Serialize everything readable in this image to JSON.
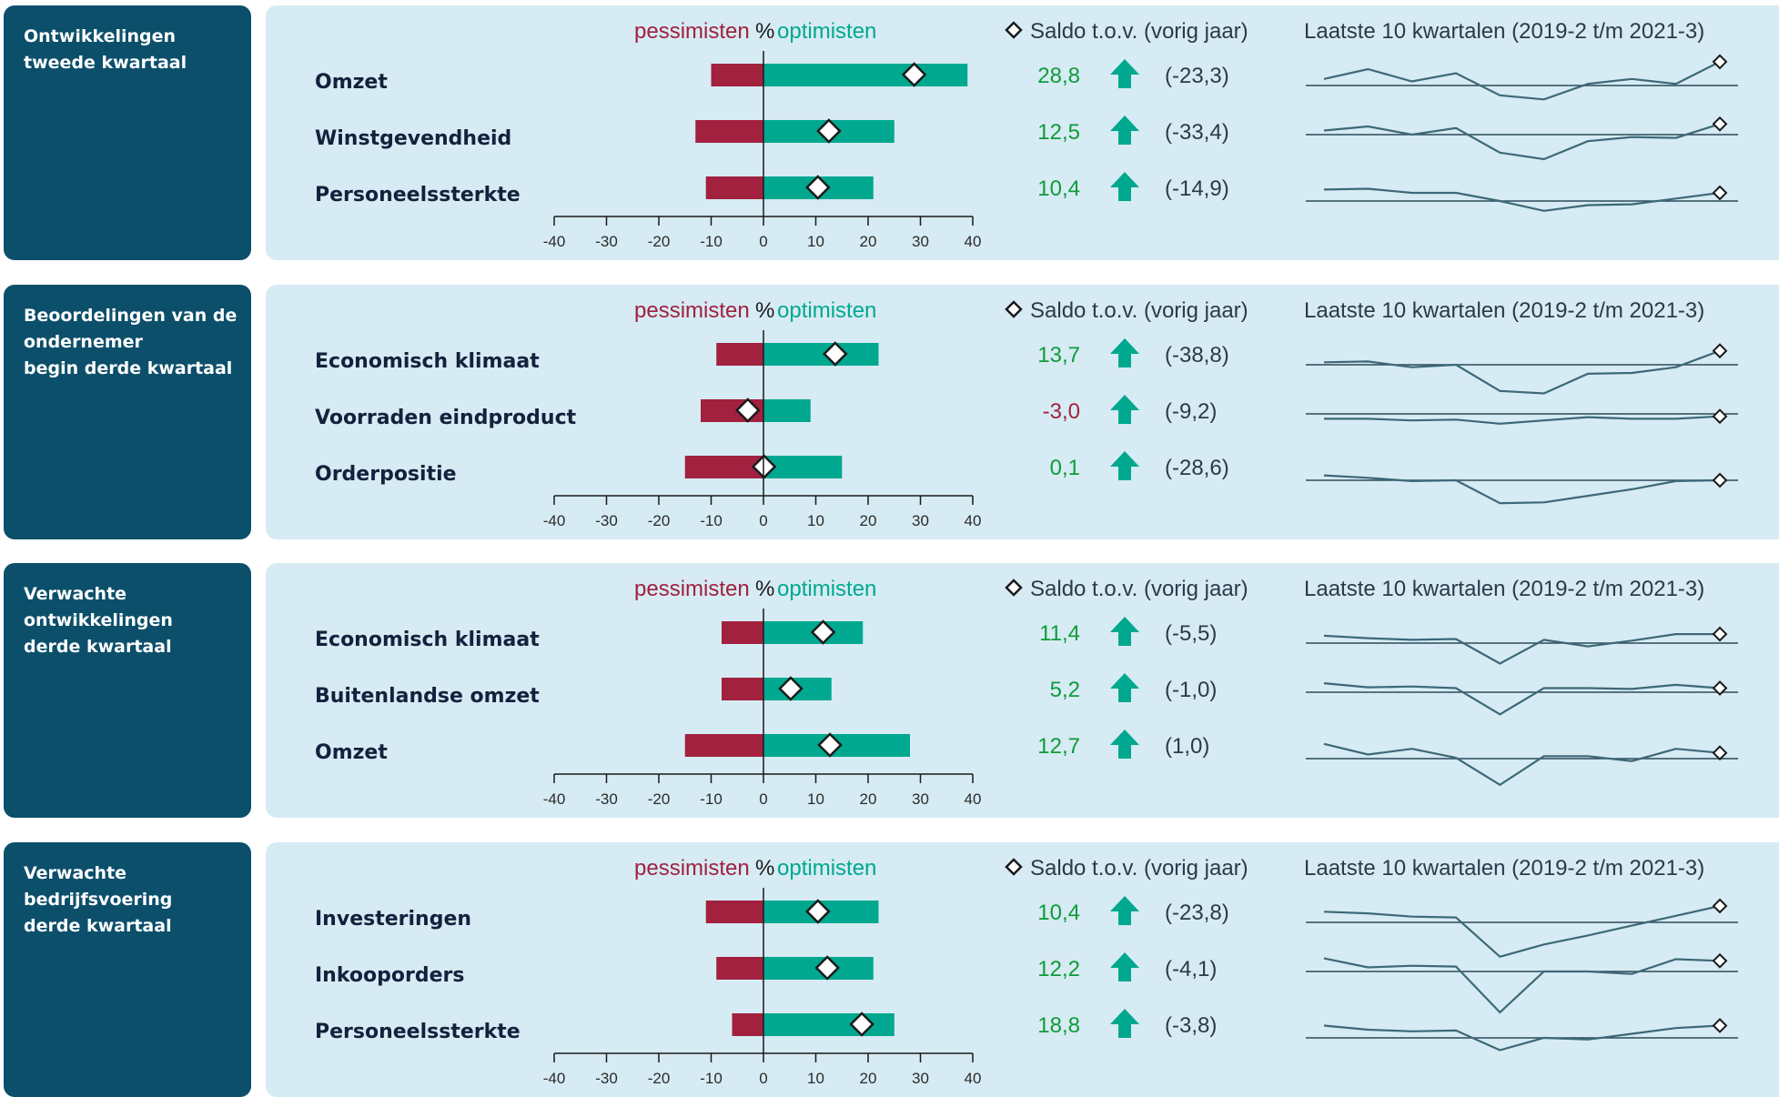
{
  "colors": {
    "pessimist": "#a1213f",
    "optimist": "#00a88f",
    "positive_text": "#0f9b3a",
    "negative_text": "#a1213f",
    "arrow": "#00a88f",
    "sparkline": "#3d6878",
    "panel_bg": "#d6ebf3",
    "side_bg": "#0c4f6b",
    "axis": "#1a1a1a"
  },
  "legend": {
    "pessimists": "pessimisten",
    "percent": "%",
    "optimists": "optimisten",
    "saldo_label": "Saldo t.o.v. (vorig jaar)",
    "trend_label": "Laatste 10 kwartalen (2019-2 t/m 2021-3)"
  },
  "axis": {
    "ticks": [
      "-40",
      "-30",
      "-20",
      "-10",
      "0",
      "10",
      "20",
      "30",
      "40"
    ]
  },
  "chart_data": [
    {
      "type": "bar",
      "title": "Ontwikkelingen\ntweede kwartaal",
      "xlim": [
        -40,
        40
      ],
      "categories": [
        "Omzet",
        "Winstgevendheid",
        "Personeelssterkte"
      ],
      "pessimists": [
        -10,
        -13,
        -11
      ],
      "optimists": [
        39,
        25,
        21
      ],
      "saldo": [
        "28,8",
        "12,5",
        "10,4"
      ],
      "saldo_values": [
        28.8,
        12.5,
        10.4
      ],
      "change": [
        "(-23,3)",
        "(-33,4)",
        "(-14,9)"
      ],
      "trend": [
        [
          8,
          20,
          5,
          15,
          -12,
          -17,
          2,
          8,
          2,
          29
        ],
        [
          5,
          10,
          0,
          8,
          -22,
          -30,
          -8,
          -3,
          -4,
          13
        ],
        [
          14,
          15,
          10,
          10,
          0,
          -12,
          -5,
          -4,
          3,
          10
        ]
      ]
    },
    {
      "type": "bar",
      "title": "Beoordelingen van de\nondernemer\nbegin derde kwartaal",
      "xlim": [
        -40,
        40
      ],
      "categories": [
        "Economisch klimaat",
        "Voorraden eindproduct",
        "Orderpositie"
      ],
      "pessimists": [
        -9,
        -12,
        -15
      ],
      "optimists": [
        22,
        9,
        15
      ],
      "saldo": [
        "13,7",
        "-3,0",
        "0,1"
      ],
      "saldo_values": [
        13.7,
        -3.0,
        0.1
      ],
      "change": [
        "(-38,8)",
        "(-9,2)",
        "(-28,6)"
      ],
      "trend": [
        [
          3,
          4,
          -3,
          0,
          -32,
          -35,
          -11,
          -10,
          -3,
          17
        ],
        [
          -6,
          -6,
          -8,
          -7,
          -12,
          -8,
          -4,
          -6,
          -6,
          -3
        ],
        [
          6,
          3,
          -1,
          0,
          -28,
          -27,
          -19,
          -11,
          -1,
          0
        ]
      ]
    },
    {
      "type": "bar",
      "title": "Verwachte\nontwikkelingen\nderde kwartaal",
      "xlim": [
        -40,
        40
      ],
      "categories": [
        "Economisch klimaat",
        "Buitenlandse omzet",
        "Omzet"
      ],
      "pessimists": [
        -8,
        -8,
        -15
      ],
      "optimists": [
        19,
        13,
        28
      ],
      "saldo": [
        "11,4",
        "5,2",
        "12,7"
      ],
      "saldo_values": [
        11.4,
        5.2,
        12.7
      ],
      "change": [
        "(-5,5)",
        "(-1,0)",
        "(1,0)"
      ],
      "trend": [
        [
          9,
          6,
          4,
          5,
          -25,
          4,
          -4,
          3,
          11,
          11
        ],
        [
          11,
          6,
          7,
          5,
          -27,
          5,
          5,
          4,
          9,
          5
        ],
        [
          18,
          5,
          12,
          1,
          -32,
          3,
          3,
          -3,
          12,
          7
        ]
      ]
    },
    {
      "type": "bar",
      "title": "Verwachte\nbedrijfsvoering\nderde kwartaal",
      "xlim": [
        -40,
        40
      ],
      "categories": [
        "Investeringen",
        "Inkooporders",
        "Personeelssterkte"
      ],
      "pessimists": [
        -11,
        -9,
        -6
      ],
      "optimists": [
        22,
        21,
        25
      ],
      "saldo": [
        "10,4",
        "12,2",
        "18,8"
      ],
      "saldo_values": [
        10.4,
        12.2,
        18.8
      ],
      "change": [
        "(-23,8)",
        "(-4,1)",
        "(-3,8)"
      ],
      "trend": [
        [
          13,
          11,
          7,
          6,
          -42,
          -27,
          -16,
          -4,
          8,
          20
        ],
        [
          16,
          5,
          7,
          6,
          -50,
          0,
          0,
          -3,
          15,
          13
        ],
        [
          15,
          10,
          8,
          9,
          -15,
          0,
          -2,
          5,
          12,
          15
        ]
      ]
    }
  ]
}
